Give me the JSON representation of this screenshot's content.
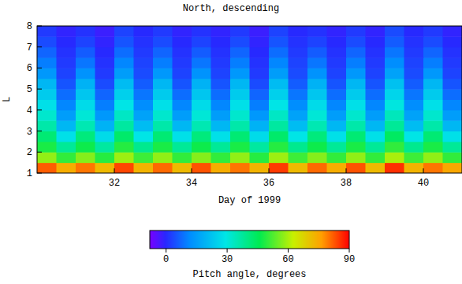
{
  "chart_data": {
    "type": "heatmap",
    "title": "North, descending",
    "x_label": "Day of 1999",
    "y_label": "L",
    "x": [
      30,
      30.5,
      31,
      31.5,
      32,
      32.5,
      33,
      33.5,
      34,
      34.5,
      35,
      35.5,
      36,
      36.5,
      37,
      37.5,
      38,
      38.5,
      39,
      39.5,
      40,
      40.5,
      41
    ],
    "y": [
      1,
      1.5,
      2,
      2.5,
      3,
      3.5,
      4,
      4.5,
      5,
      5.5,
      6,
      6.5,
      7,
      7.5,
      8
    ],
    "cells": [
      [
        82,
        74,
        80,
        72,
        84,
        73,
        81,
        72,
        83,
        74,
        80,
        73,
        85,
        72,
        81,
        74,
        83,
        72,
        86,
        73,
        80,
        75
      ],
      [
        58,
        50,
        57,
        49,
        59,
        51,
        58,
        50,
        57,
        50,
        58,
        49,
        59,
        51,
        57,
        50,
        58,
        50,
        60,
        51,
        58,
        50
      ],
      [
        48,
        38,
        47,
        37,
        49,
        39,
        48,
        38,
        47,
        38,
        48,
        37,
        49,
        39,
        47,
        38,
        48,
        38,
        50,
        39,
        48,
        38
      ],
      [
        42,
        28,
        41,
        27,
        43,
        29,
        42,
        28,
        41,
        28,
        42,
        27,
        43,
        29,
        41,
        28,
        42,
        28,
        44,
        29,
        42,
        28
      ],
      [
        36,
        20,
        35,
        19,
        37,
        21,
        36,
        20,
        35,
        20,
        36,
        19,
        37,
        21,
        35,
        20,
        36,
        20,
        38,
        21,
        36,
        20
      ],
      [
        32,
        15,
        31,
        14,
        33,
        16,
        32,
        15,
        31,
        15,
        32,
        14,
        33,
        16,
        31,
        15,
        32,
        15,
        34,
        16,
        32,
        15
      ],
      [
        28,
        11,
        27,
        10,
        29,
        12,
        28,
        11,
        27,
        11,
        28,
        10,
        29,
        12,
        27,
        11,
        28,
        11,
        30,
        12,
        28,
        11
      ],
      [
        24,
        8,
        23,
        7,
        25,
        9,
        24,
        8,
        23,
        8,
        24,
        7,
        25,
        9,
        23,
        8,
        24,
        8,
        26,
        9,
        24,
        8
      ],
      [
        20,
        5,
        19,
        4,
        21,
        6,
        20,
        5,
        19,
        5,
        20,
        4,
        21,
        6,
        19,
        5,
        20,
        5,
        22,
        6,
        20,
        5
      ],
      [
        14,
        3,
        13,
        2,
        15,
        4,
        14,
        3,
        13,
        3,
        14,
        2,
        15,
        4,
        13,
        3,
        14,
        3,
        16,
        4,
        14,
        3
      ],
      [
        10,
        2,
        9,
        1,
        11,
        3,
        10,
        2,
        9,
        2,
        10,
        1,
        11,
        3,
        9,
        2,
        10,
        2,
        12,
        3,
        10,
        2
      ],
      [
        7,
        1,
        6,
        0,
        8,
        2,
        7,
        1,
        6,
        1,
        7,
        0,
        8,
        2,
        6,
        1,
        7,
        1,
        9,
        2,
        7,
        1
      ],
      [
        4,
        0,
        3,
        -1,
        5,
        1,
        4,
        0,
        3,
        0,
        4,
        -1,
        5,
        1,
        3,
        0,
        4,
        0,
        6,
        1,
        4,
        0
      ],
      [
        2,
        -1,
        1,
        -2,
        3,
        0,
        2,
        -1,
        1,
        -1,
        2,
        -2,
        3,
        0,
        1,
        -1,
        2,
        -1,
        4,
        0,
        2,
        -1
      ]
    ],
    "xlim": [
      30,
      41
    ],
    "ylim": [
      1,
      8
    ],
    "xticks": [
      32,
      34,
      36,
      38,
      40
    ],
    "yticks": [
      1,
      2,
      3,
      4,
      5,
      6,
      7,
      8
    ],
    "colorbar_label": "Pitch angle, degrees",
    "colorbar_range": [
      -8,
      90
    ],
    "colorbar_ticks": [
      0,
      30,
      60,
      90
    ]
  }
}
